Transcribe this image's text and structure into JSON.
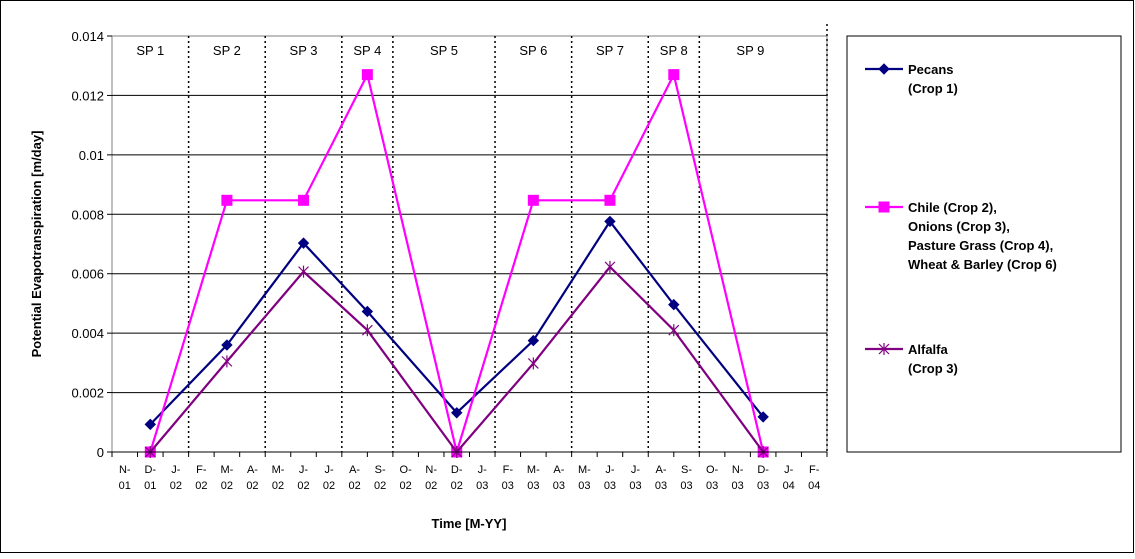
{
  "chart_data": {
    "type": "line",
    "title": "",
    "xlabel": "Time [M-YY]",
    "ylabel": "Potential Evapotranspiration [m/day]",
    "ylim": [
      0,
      0.014
    ],
    "yticks": [
      "0",
      "0.002",
      "0.004",
      "0.006",
      "0.008",
      "0.01",
      "0.012",
      "0.014"
    ],
    "grid": "horizontal",
    "legend_position": "right",
    "x_categories": [
      [
        "N-",
        "01"
      ],
      [
        "D-",
        "01"
      ],
      [
        "J-",
        "02"
      ],
      [
        "F-",
        "02"
      ],
      [
        "M-",
        "02"
      ],
      [
        "A-",
        "02"
      ],
      [
        "M-",
        "02"
      ],
      [
        "J-",
        "02"
      ],
      [
        "J-",
        "02"
      ],
      [
        "A-",
        "02"
      ],
      [
        "S-",
        "02"
      ],
      [
        "O-",
        "02"
      ],
      [
        "N-",
        "02"
      ],
      [
        "D-",
        "02"
      ],
      [
        "J-",
        "03"
      ],
      [
        "F-",
        "03"
      ],
      [
        "M-",
        "03"
      ],
      [
        "A-",
        "03"
      ],
      [
        "M-",
        "03"
      ],
      [
        "J-",
        "03"
      ],
      [
        "J-",
        "03"
      ],
      [
        "A-",
        "03"
      ],
      [
        "S-",
        "03"
      ],
      [
        "O-",
        "03"
      ],
      [
        "N-",
        "03"
      ],
      [
        "D-",
        "03"
      ],
      [
        "J-",
        "04"
      ],
      [
        "F-",
        "04"
      ]
    ],
    "stress_periods": [
      {
        "label": "SP 1",
        "start": 0,
        "end": 3
      },
      {
        "label": "SP 2",
        "start": 3,
        "end": 6
      },
      {
        "label": "SP 3",
        "start": 6,
        "end": 9
      },
      {
        "label": "SP 4",
        "start": 9,
        "end": 11
      },
      {
        "label": "SP 5",
        "start": 11,
        "end": 15
      },
      {
        "label": "SP 6",
        "start": 15,
        "end": 18
      },
      {
        "label": "SP 7",
        "start": 18,
        "end": 21
      },
      {
        "label": "SP 8",
        "start": 21,
        "end": 23
      },
      {
        "label": "SP 9",
        "start": 23,
        "end": 27
      }
    ],
    "series": [
      {
        "name": "Pecans (Crop 1)",
        "legend_lines": [
          "Pecans",
          "(Crop 1)"
        ],
        "color": "#000080",
        "marker": "diamond",
        "points": [
          [
            1.5,
            0.00093
          ],
          [
            4.5,
            0.0036
          ],
          [
            7.5,
            0.00703
          ],
          [
            10,
            0.00473
          ],
          [
            13.5,
            0.00132
          ],
          [
            16.5,
            0.00375
          ],
          [
            19.5,
            0.00776
          ],
          [
            22,
            0.00496
          ],
          [
            25.5,
            0.00118
          ]
        ]
      },
      {
        "name": "Chile (Crop 2), Onions (Crop 3), Pasture Grass (Crop 4), Wheat & Barley (Crop 6)",
        "legend_lines": [
          "Chile (Crop 2),",
          "Onions (Crop 3),",
          "Pasture Grass (Crop 4),",
          "Wheat & Barley (Crop 6)"
        ],
        "color": "#ff00ff",
        "marker": "square",
        "points": [
          [
            1.5,
            0
          ],
          [
            4.5,
            0.00847
          ],
          [
            7.5,
            0.00847
          ],
          [
            10,
            0.0127
          ],
          [
            13.5,
            0
          ],
          [
            16.5,
            0.00847
          ],
          [
            19.5,
            0.00847
          ],
          [
            22,
            0.0127
          ],
          [
            25.5,
            0
          ]
        ]
      },
      {
        "name": "Alfalfa (Crop 3)",
        "legend_lines": [
          "Alfalfa",
          "(Crop 3)"
        ],
        "color": "#800080",
        "marker": "asterisk",
        "points": [
          [
            1.5,
            0
          ],
          [
            4.5,
            0.00305
          ],
          [
            7.5,
            0.00607
          ],
          [
            10,
            0.0041
          ],
          [
            13.5,
            0
          ],
          [
            16.5,
            0.00298
          ],
          [
            19.5,
            0.00623
          ],
          [
            22,
            0.0041
          ],
          [
            25.5,
            0
          ]
        ]
      }
    ]
  }
}
